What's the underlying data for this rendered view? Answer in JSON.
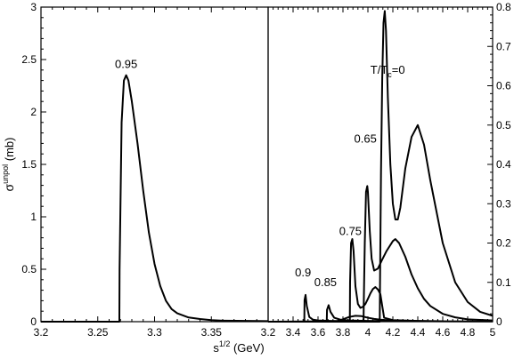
{
  "chart_data": [
    {
      "type": "line",
      "panel": "left",
      "xlabel_html": "s<sup>1/2</sup> (GeV)",
      "xlabel_base": "s",
      "xlabel_sup": "1/2",
      "xlabel_tail": " (GeV)",
      "ylabel_base": "σ",
      "ylabel_sup": "unpol",
      "ylabel_tail": " (mb)",
      "xlim": [
        3.2,
        3.4
      ],
      "ylim": [
        0,
        3
      ],
      "xticks": [
        "3.2",
        "3.25",
        "3.3",
        "3.35",
        "3.4"
      ],
      "xtick_values": [
        3.2,
        3.25,
        3.3,
        3.35,
        3.4
      ],
      "yticks": [
        "0",
        "0.5",
        "1",
        "1.5",
        "2",
        "2.5",
        "3"
      ],
      "ytick_values": [
        0,
        0.5,
        1,
        1.5,
        2,
        2.5,
        3
      ],
      "series": [
        {
          "label": "0.95",
          "label_at": [
            3.275,
            2.42
          ],
          "x": [
            3.2,
            3.269,
            3.2692,
            3.271,
            3.273,
            3.275,
            3.277,
            3.28,
            3.285,
            3.29,
            3.295,
            3.3,
            3.305,
            3.31,
            3.315,
            3.32,
            3.33,
            3.34,
            3.35,
            3.36,
            3.4
          ],
          "y": [
            0,
            0,
            0.5,
            1.9,
            2.3,
            2.35,
            2.3,
            2.1,
            1.7,
            1.25,
            0.85,
            0.55,
            0.34,
            0.2,
            0.12,
            0.08,
            0.04,
            0.025,
            0.015,
            0.01,
            0.005
          ]
        }
      ]
    },
    {
      "type": "line",
      "panel": "right",
      "xlim": [
        3.2,
        5.0
      ],
      "ylim": [
        0,
        0.8
      ],
      "xticks": [
        "3.2",
        "3.4",
        "3.6",
        "3.8",
        "4",
        "4.2",
        "4.4",
        "4.6",
        "4.8",
        "5"
      ],
      "xtick_values": [
        3.2,
        3.4,
        3.6,
        3.8,
        4.0,
        4.2,
        4.4,
        4.6,
        4.8,
        5.0
      ],
      "yticks": [
        "0",
        "0.1",
        "0.2",
        "0.3",
        "0.4",
        "0.5",
        "0.6",
        "0.7",
        "0.8"
      ],
      "ytick_values": [
        0,
        0.1,
        0.2,
        0.3,
        0.4,
        0.5,
        0.6,
        0.7,
        0.8
      ],
      "series": [
        {
          "label": "0.9",
          "label_at": [
            3.48,
            0.115
          ],
          "x": [
            3.2,
            3.49,
            3.492,
            3.5,
            3.51,
            3.53,
            3.56,
            3.6,
            3.7,
            4.0
          ],
          "y": [
            0,
            0,
            0.055,
            0.068,
            0.04,
            0.012,
            0.005,
            0.003,
            0.002,
            0.001
          ]
        },
        {
          "label": "0.85",
          "label_at": [
            3.66,
            0.09
          ],
          "x": [
            3.2,
            3.67,
            3.672,
            3.685,
            3.7,
            3.73,
            3.78,
            3.85,
            4.0,
            4.5
          ],
          "y": [
            0,
            0,
            0.03,
            0.042,
            0.025,
            0.01,
            0.005,
            0.003,
            0.002,
            0.001
          ]
        },
        {
          "label": "",
          "x": [
            3.2,
            3.75,
            3.8,
            3.85,
            3.9,
            3.95,
            4.0,
            4.05,
            4.1,
            4.15,
            4.2,
            4.3,
            4.5,
            5.0
          ],
          "y": [
            0,
            0.001,
            0.006,
            0.012,
            0.015,
            0.014,
            0.01,
            0.007,
            0.005,
            0.004,
            0.003,
            0.002,
            0.001,
            0.0005
          ]
        },
        {
          "label": "0.75",
          "label_at": [
            3.86,
            0.22
          ],
          "x": [
            3.2,
            3.855,
            3.857,
            3.865,
            3.875,
            3.885,
            3.9,
            3.92,
            3.94,
            3.96,
            3.98,
            4.0,
            4.02,
            4.04,
            4.06,
            4.08,
            4.1,
            4.11,
            4.12,
            4.13,
            4.2,
            4.4,
            4.6
          ],
          "y": [
            0,
            0,
            0.1,
            0.2,
            0.21,
            0.18,
            0.09,
            0.045,
            0.035,
            0.038,
            0.045,
            0.058,
            0.072,
            0.083,
            0.088,
            0.082,
            0.07,
            0.05,
            0.03,
            0.01,
            0.004,
            0.002,
            0.001
          ]
        },
        {
          "label": "0.65",
          "label_at": [
            3.98,
            0.455
          ],
          "x": [
            3.2,
            3.965,
            3.967,
            3.975,
            3.985,
            3.995,
            4.0,
            4.015,
            4.03,
            4.05,
            4.08,
            4.11,
            4.15,
            4.2,
            4.22,
            4.25,
            4.3,
            4.35,
            4.4,
            4.45,
            4.5,
            4.6,
            4.7,
            4.8,
            5.0
          ],
          "y": [
            0,
            0,
            0.05,
            0.2,
            0.33,
            0.345,
            0.33,
            0.23,
            0.16,
            0.13,
            0.135,
            0.155,
            0.18,
            0.205,
            0.21,
            0.2,
            0.165,
            0.12,
            0.085,
            0.058,
            0.04,
            0.02,
            0.011,
            0.006,
            0.003
          ]
        },
        {
          "label": "",
          "x": [
            3.2,
            4.095,
            4.097,
            4.105,
            4.115,
            4.125,
            4.135,
            4.145,
            4.16,
            4.18,
            4.2,
            4.22,
            4.24,
            4.26,
            4.3,
            4.35,
            4.4,
            4.45,
            4.5,
            4.6,
            4.7,
            4.8,
            4.9,
            5.0
          ],
          "y": [
            0,
            0,
            0.09,
            0.38,
            0.62,
            0.76,
            0.79,
            0.74,
            0.57,
            0.4,
            0.3,
            0.26,
            0.26,
            0.29,
            0.39,
            0.47,
            0.5,
            0.45,
            0.36,
            0.2,
            0.1,
            0.05,
            0.025,
            0.015
          ]
        }
      ],
      "annotation": {
        "text_base": "T/T",
        "text_sub": "c",
        "text_tail": "=0",
        "at": [
          4.02,
          0.63
        ]
      }
    }
  ]
}
